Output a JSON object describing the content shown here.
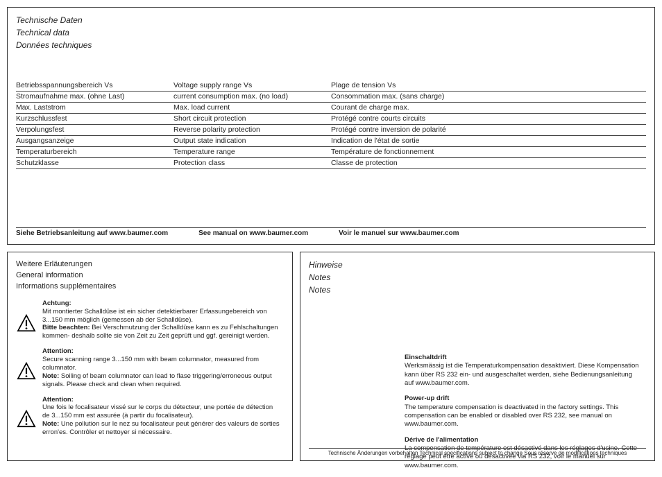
{
  "colors": {
    "border": "#333333",
    "text": "#222222",
    "background": "#ffffff"
  },
  "top": {
    "title_de": "Technische Daten",
    "title_en": "Technical data",
    "title_fr": "Données techniques",
    "rows": [
      {
        "de": "Betriebsspannungsbereich Vs",
        "en": "Voltage supply range Vs",
        "fr": "Plage de tension Vs"
      },
      {
        "de": "Stromaufnahme max. (ohne Last)",
        "en": "current consumption max. (no load)",
        "fr": "Consommation max. (sans charge)"
      },
      {
        "de": "Max. Laststrom",
        "en": "Max. load current",
        "fr": "Courant de charge max."
      },
      {
        "de": "Kurzschlussfest",
        "en": "Short circuit protection",
        "fr": "Protégé contre courts circuits"
      },
      {
        "de": "Verpolungsfest",
        "en": "Reverse polarity protection",
        "fr": "Protégé contre inversion de polarité"
      },
      {
        "de": "Ausgangsanzeige",
        "en": "Output state indication",
        "fr": "Indication de l'état de sortie"
      },
      {
        "de": "Temperaturbereich",
        "en": "Temperature range",
        "fr": "Température de fonctionnement"
      },
      {
        "de": "Schutzklasse",
        "en": "Protection class",
        "fr": "Classe de protection"
      }
    ],
    "manual_de": "Siehe Betriebsanleitung auf www.baumer.com",
    "manual_en": "See manual on www.baumer.com",
    "manual_fr": "Voir le manuel sur www.baumer.com"
  },
  "left": {
    "t_de": "Weitere Erläuterungen",
    "t_en": "General information",
    "t_fr": "Informations supplémentaires",
    "a1_h": "Achtung:",
    "a1_p1": "Mit montierter Schalldüse ist ein sicher detektierbarer Erfassungebereich von 3...150 mm möglich (gemessen ab der Schalldüse).",
    "a1_b": "Bitte beachten:",
    "a1_p2": " Bei Verschmutzung der Schalldüse kann es zu Fehlschaltungen kommen- deshalb sollte sie von Zeit zu Zeit geprüft und ggf. gereinigt werden.",
    "a2_h": "Attention:",
    "a2_p1": "Secure scanning range 3...150 mm with beam columnator, measured from columnator.",
    "a2_b": "Note:",
    "a2_p2": " Soiling of beam columnator can lead to flase triggering/erroneous output signals. Please check and clean when required.",
    "a3_h": "Attention:",
    "a3_p1": "Une fois le focalisateur vissé sur le corps du détecteur, une portée de détection de 3...150 mm est assurée (à partir du focalisateur).",
    "a3_b": "Note:",
    "a3_p2": " Une pollution sur le nez su focalisateur peut générer des valeurs de sorties erron'es. Contrôler et nettoyer si nécessaire."
  },
  "right": {
    "t_de": "Hinweise",
    "t_en": "Notes",
    "t_fr": "Notes",
    "b1_h": "Einschaltdrift",
    "b1_p": "Werksmässig ist die Temperaturkompensation desaktiviert. Diese Kompensation kann über RS 232 ein- und ausgeschaltet werden, siehe Bedienungsanleitung auf www.baumer.com.",
    "b2_h": "Power-up drift",
    "b2_p": "The temperature compensation is deactivated in the factory settings. This compensation can be enabled or disabled over RS 232, see manual on www.baumer.com.",
    "b3_h": "Dérive de l'alimentation",
    "b3_p": "La compensation de température est désactivé dans les réglages d'usine. Cette réglage peut être activé ou désactivée via RS 232, voir le manuel sur www.baumer.com.",
    "footer": "Technische Änderungen vorbehalten   Technical specifications subject to change   Sous réserve de modifications techniques"
  }
}
